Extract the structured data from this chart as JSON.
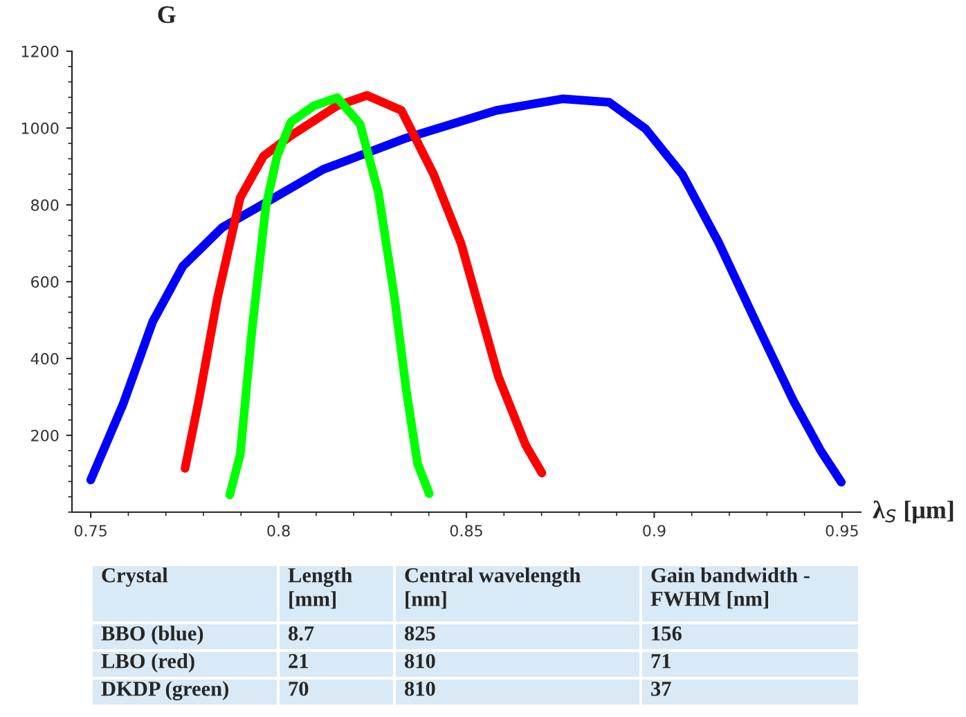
{
  "chart_data": {
    "type": "line",
    "ylabel": "G",
    "xlabel": "λ$_{S}$ [μm]",
    "xlim": [
      0.745,
      0.955
    ],
    "ylim": [
      0,
      1200
    ],
    "xticks": [
      0.75,
      0.8,
      0.85,
      0.9,
      0.95
    ],
    "yticks": [
      200,
      400,
      600,
      800,
      1000,
      1200
    ],
    "grid": false,
    "legend": false,
    "series": [
      {
        "color": "#0000ff",
        "x": [
          0.75,
          0.7586,
          0.7665,
          0.7745,
          0.785,
          0.7947,
          0.8118,
          0.834,
          0.858,
          0.8756,
          0.888,
          0.8977,
          0.9075,
          0.9173,
          0.927,
          0.9369,
          0.9442,
          0.9498
        ],
        "values": [
          84,
          281,
          496,
          640,
          741,
          795,
          892,
          974,
          1046,
          1076,
          1067,
          998,
          879,
          699,
          496,
          293,
          162,
          78
        ]
      },
      {
        "color": "#ff0000",
        "x": [
          0.7751,
          0.7788,
          0.7837,
          0.7898,
          0.796,
          0.8033,
          0.8156,
          0.8235,
          0.8327,
          0.8413,
          0.8486,
          0.8585,
          0.8658,
          0.8701
        ],
        "values": [
          114,
          293,
          556,
          819,
          927,
          980,
          1058,
          1085,
          1046,
          879,
          699,
          353,
          174,
          102
        ]
      },
      {
        "color": "#00ff00",
        "x": [
          0.787,
          0.7898,
          0.7929,
          0.7966,
          0.7996,
          0.8033,
          0.8094,
          0.8156,
          0.8217,
          0.8266,
          0.8309,
          0.834,
          0.837,
          0.8401
        ],
        "values": [
          45,
          150,
          472,
          795,
          927,
          1016,
          1058,
          1079,
          1010,
          831,
          556,
          317,
          126,
          48
        ]
      }
    ],
    "annotations": [
      "Crystal",
      "Length\n[mm]",
      "Central wavelength\n[nm]",
      "Gain bandwidth -\nFWHM [nm]",
      "BBO (blue)",
      "8.7",
      "825",
      "156",
      "LBO (red)",
      "21",
      "810",
      "71",
      "DKDP (green)",
      "70",
      "810",
      "37"
    ]
  }
}
